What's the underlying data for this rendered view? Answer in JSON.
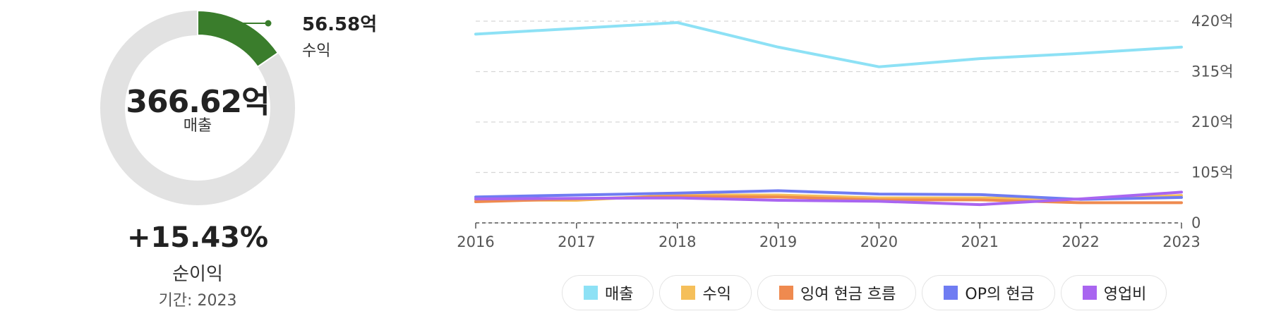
{
  "summary": {
    "total_value": "366.62억",
    "total_label": "매출",
    "highlight_value": "56.58억",
    "highlight_label": "수익",
    "highlight_fraction": 0.1543,
    "growth_value": "+15.43%",
    "growth_label": "순이익",
    "period_text": "기간: 2023"
  },
  "colors": {
    "donut_fill": "#3a7d2c",
    "donut_track": "#e2e2e2",
    "grid": "#d6d6d6",
    "axis_text": "#555555"
  },
  "chart_data": {
    "type": "line",
    "title": "",
    "xlabel": "",
    "ylabel": "",
    "x": [
      "2016",
      "2017",
      "2018",
      "2019",
      "2020",
      "2021",
      "2022",
      "2023"
    ],
    "ylim": [
      0,
      420
    ],
    "y_ticks": [
      {
        "value": 420,
        "label": "420억"
      },
      {
        "value": 315,
        "label": "315억"
      },
      {
        "value": 210,
        "label": "210억"
      },
      {
        "value": 105,
        "label": "105억"
      },
      {
        "value": 0,
        "label": "0"
      }
    ],
    "grid": true,
    "legend_position": "bottom",
    "series": [
      {
        "name": "매출",
        "color": "#8de1f5",
        "values": [
          393,
          405,
          417,
          366,
          325,
          342,
          353,
          366
        ]
      },
      {
        "name": "수익",
        "color": "#f5bf5a",
        "values": [
          48,
          47,
          58,
          58,
          52,
          52,
          49,
          57
        ]
      },
      {
        "name": "잉여 현금 흐름",
        "color": "#ef8a4f",
        "values": [
          44,
          50,
          55,
          54,
          48,
          48,
          42,
          42
        ]
      },
      {
        "name": "OP의 현금",
        "color": "#6f7cf2",
        "values": [
          54,
          58,
          62,
          67,
          60,
          59,
          49,
          53
        ]
      },
      {
        "name": "영업비",
        "color": "#a965f0",
        "values": [
          50,
          51,
          52,
          47,
          45,
          38,
          50,
          64
        ]
      }
    ]
  }
}
